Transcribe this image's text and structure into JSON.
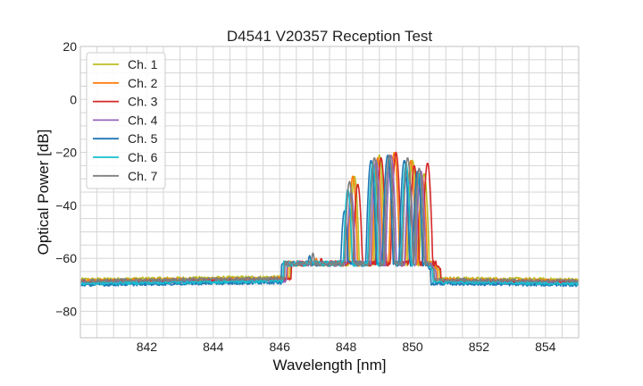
{
  "chart_data": {
    "type": "line",
    "title": "D4541 V20357 Reception Test",
    "xlabel": "Wavelength [nm]",
    "ylabel": "Optical Power [dB]",
    "xlim": [
      840,
      855
    ],
    "ylim": [
      -90,
      20
    ],
    "xticks": [
      "842",
      "844",
      "846",
      "848",
      "850",
      "852",
      "854"
    ],
    "xtick_values": [
      842,
      844,
      846,
      848,
      850,
      852,
      854
    ],
    "yticks": [
      "20",
      "0",
      "−20",
      "−40",
      "−60",
      "−80"
    ],
    "ytick_values": [
      20,
      0,
      -20,
      -40,
      -60,
      -80
    ],
    "grid": true,
    "minor_grid": {
      "x_step": 0.5,
      "y_step": 5
    },
    "legend_position": "top-left",
    "series": [
      {
        "name": "Ch. 1",
        "color": "#bcbd22",
        "shift": 0.1,
        "floor": -68.0,
        "peaks": [
          [
            847.15,
            -61
          ],
          [
            848.25,
            -29
          ],
          [
            849.0,
            -21
          ],
          [
            849.45,
            -20
          ],
          [
            850.0,
            -23
          ],
          [
            850.35,
            -28
          ]
        ]
      },
      {
        "name": "Ch. 2",
        "color": "#ff7f0e",
        "shift": 0.05,
        "floor": -68.5,
        "peaks": [
          [
            847.1,
            -60
          ],
          [
            848.2,
            -29
          ],
          [
            848.95,
            -22
          ],
          [
            849.45,
            -20
          ],
          [
            849.95,
            -23
          ],
          [
            850.3,
            -30
          ]
        ]
      },
      {
        "name": "Ch. 3",
        "color": "#d62728",
        "shift": 0.15,
        "floor": -69.0,
        "peaks": [
          [
            847.25,
            -60
          ],
          [
            848.35,
            -32
          ],
          [
            849.05,
            -22
          ],
          [
            849.5,
            -20
          ],
          [
            850.05,
            -25
          ],
          [
            850.45,
            -24
          ]
        ]
      },
      {
        "name": "Ch. 4",
        "color": "#9467bd",
        "shift": 0.0,
        "floor": -69.5,
        "peaks": [
          [
            847.05,
            -61
          ],
          [
            848.15,
            -35
          ],
          [
            848.9,
            -23
          ],
          [
            849.35,
            -21
          ],
          [
            849.9,
            -31
          ],
          [
            850.25,
            -27
          ]
        ]
      },
      {
        "name": "Ch. 5",
        "color": "#1f77b4",
        "shift": -0.15,
        "floor": -70.0,
        "peaks": [
          [
            846.9,
            -59
          ],
          [
            847.95,
            -42
          ],
          [
            848.75,
            -23
          ],
          [
            849.25,
            -21
          ],
          [
            849.75,
            -23
          ],
          [
            850.15,
            -27
          ]
        ]
      },
      {
        "name": "Ch. 6",
        "color": "#17becf",
        "shift": -0.1,
        "floor": -69.5,
        "peaks": [
          [
            846.95,
            -60
          ],
          [
            848.05,
            -34
          ],
          [
            848.8,
            -24
          ],
          [
            849.3,
            -22
          ],
          [
            849.8,
            -24
          ],
          [
            850.2,
            -28
          ]
        ]
      },
      {
        "name": "Ch. 7",
        "color": "#7f7f7f",
        "shift": -0.05,
        "floor": -68.5,
        "peaks": [
          [
            847.0,
            -58
          ],
          [
            848.1,
            -31
          ],
          [
            848.85,
            -22
          ],
          [
            849.3,
            -21
          ],
          [
            849.85,
            -22
          ],
          [
            850.2,
            -26
          ]
        ]
      }
    ]
  }
}
